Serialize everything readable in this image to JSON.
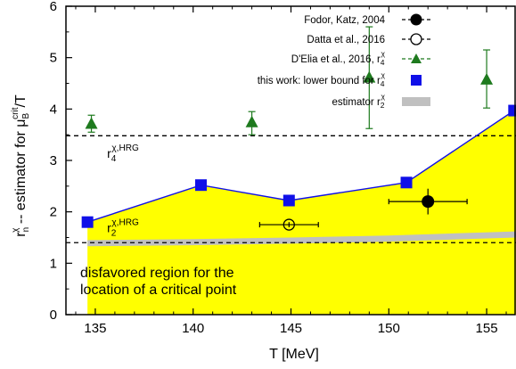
{
  "chart_data": {
    "type": "scatter",
    "xlabel": "T [MeV]",
    "ylabel": {
      "main": "r",
      "sub": "n",
      "sup": "χ",
      "rest": " -- estimator for μ",
      "rest_sub": "B",
      "rest_sup": "crit",
      "tail": "/T"
    },
    "xlim": [
      133.5,
      156.5
    ],
    "ylim": [
      0,
      6
    ],
    "x_ticks": [
      135,
      140,
      145,
      150,
      155
    ],
    "y_ticks": [
      0,
      1,
      2,
      3,
      4,
      5,
      6
    ],
    "legend_position": "top-right",
    "series": [
      {
        "name": "Fodor, Katz, 2004",
        "marker": "filled-circle",
        "color": "#000000",
        "points": [
          {
            "x": 152.0,
            "y": 2.2,
            "xerr": 2.0,
            "yerr": 0.25
          }
        ]
      },
      {
        "name": "Datta et al., 2016",
        "marker": "open-circle",
        "color": "#000000",
        "points": [
          {
            "x": 144.9,
            "y": 1.75,
            "xerr": 1.5,
            "yerr": 0.05
          }
        ]
      },
      {
        "name": "D'Elia et al., 2016, r",
        "name_sub": "4",
        "name_sup": "χ",
        "marker": "triangle",
        "color": "#1e7a1e",
        "points": [
          {
            "x": 134.8,
            "y": 3.72,
            "ylo": 3.55,
            "yhi": 3.88
          },
          {
            "x": 143.0,
            "y": 3.75,
            "ylo": 3.5,
            "yhi": 3.95
          },
          {
            "x": 149.0,
            "y": 4.62,
            "ylo": 3.62,
            "yhi": 5.6
          },
          {
            "x": 155.0,
            "y": 4.58,
            "ylo": 4.02,
            "yhi": 5.15
          }
        ]
      },
      {
        "name": "this work: lower bound for r",
        "name_sub": "4",
        "name_sup": "χ",
        "marker": "square",
        "color": "#1010e8",
        "line_color": "#1010e8",
        "points": [
          {
            "x": 134.6,
            "y": 1.8
          },
          {
            "x": 140.4,
            "y": 2.52
          },
          {
            "x": 144.9,
            "y": 2.22
          },
          {
            "x": 150.9,
            "y": 2.57
          },
          {
            "x": 156.4,
            "y": 3.97
          }
        ]
      },
      {
        "name": "estimator r",
        "name_sub": "2",
        "name_sup": "χ",
        "marker": "band",
        "color": "#c0c0c0",
        "band": [
          {
            "x": 134.6,
            "lo": 1.33,
            "hi": 1.45
          },
          {
            "x": 140.0,
            "lo": 1.35,
            "hi": 1.47
          },
          {
            "x": 145.0,
            "lo": 1.38,
            "hi": 1.5
          },
          {
            "x": 150.0,
            "lo": 1.42,
            "hi": 1.54
          },
          {
            "x": 156.5,
            "lo": 1.5,
            "hi": 1.62
          }
        ]
      }
    ],
    "reference_lines": [
      {
        "y": 3.48,
        "style": "dashed",
        "label": "r",
        "label_sub": "4",
        "label_sup": "χ,HRG",
        "label_x": 135.6,
        "label_y": 3.05
      },
      {
        "y": 1.4,
        "style": "dashed",
        "label": "r",
        "label_sub": "2",
        "label_sup": "χ,HRG",
        "label_x": 135.6,
        "label_y": 1.6
      }
    ],
    "region": {
      "color": "#ffff00",
      "label_line1": "disfavored region for the",
      "label_line2": "location of a critical point"
    }
  }
}
